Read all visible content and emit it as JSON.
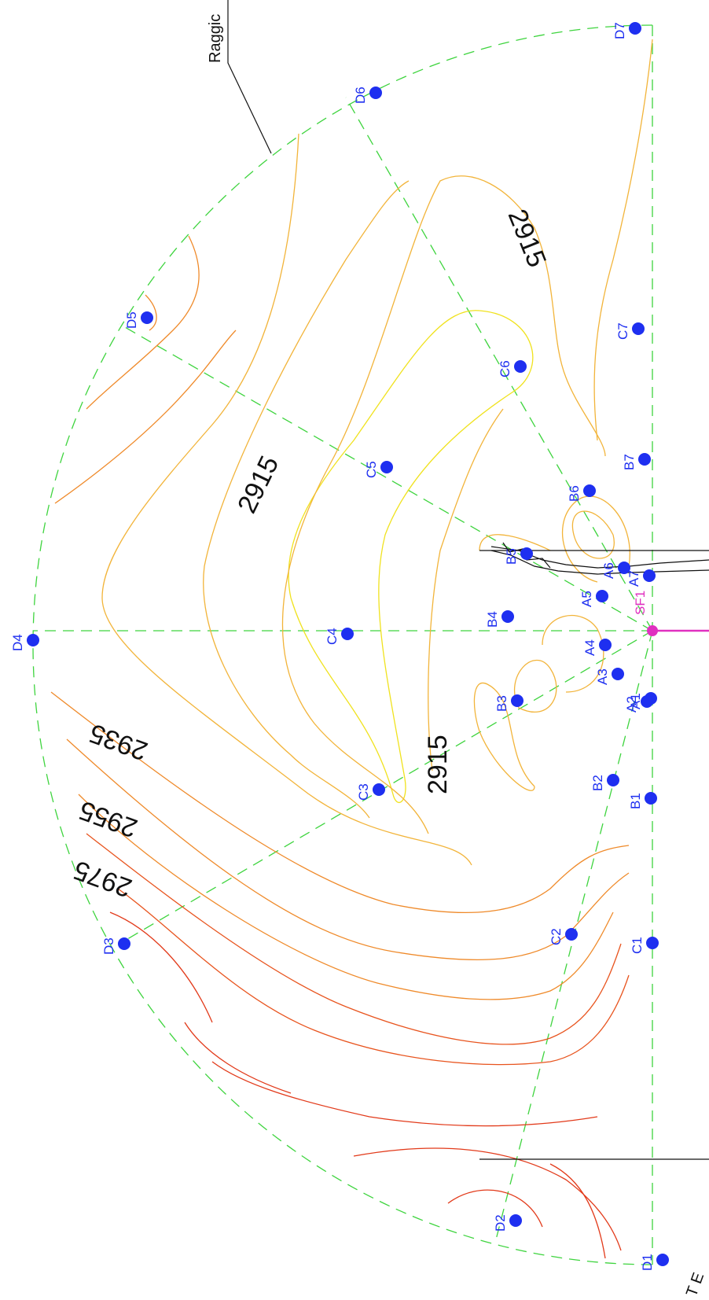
{
  "annotation": {
    "text": "Raggic"
  },
  "corner_text": "T E",
  "contour_labels": [
    {
      "id": "c1",
      "text": "2915"
    },
    {
      "id": "c2",
      "text": "2915"
    },
    {
      "id": "c3",
      "text": "2915"
    },
    {
      "id": "c4",
      "text": "2935"
    },
    {
      "id": "c5",
      "text": "2955"
    },
    {
      "id": "c6",
      "text": "2975"
    }
  ],
  "points": {
    "A1": "A1",
    "A2": "A2",
    "A3": "A3",
    "A4": "A4",
    "A5": "A5",
    "A6": "A6",
    "A7": "A7",
    "B1": "B1",
    "B2": "B2",
    "B3": "B3",
    "B4": "B4",
    "B5": "B5",
    "B6": "B6",
    "B7": "B7",
    "C1": "C1",
    "C2": "C2",
    "C3": "C3",
    "C4": "C4",
    "C5": "C5",
    "C6": "C6",
    "C7": "C7",
    "D1": "D1",
    "D2": "D2",
    "D3": "D3",
    "D4": "D4",
    "D5": "D5",
    "D6": "D6",
    "D7": "D7",
    "SF1": "SF1"
  },
  "colors": {
    "guide": "#3ed43e",
    "point": "#1e2ff0",
    "marker": "#e030c0",
    "contour_yellow": "#f0e21e",
    "contour_orange": "#f2b43a",
    "contour_red": "#e23a1a"
  }
}
